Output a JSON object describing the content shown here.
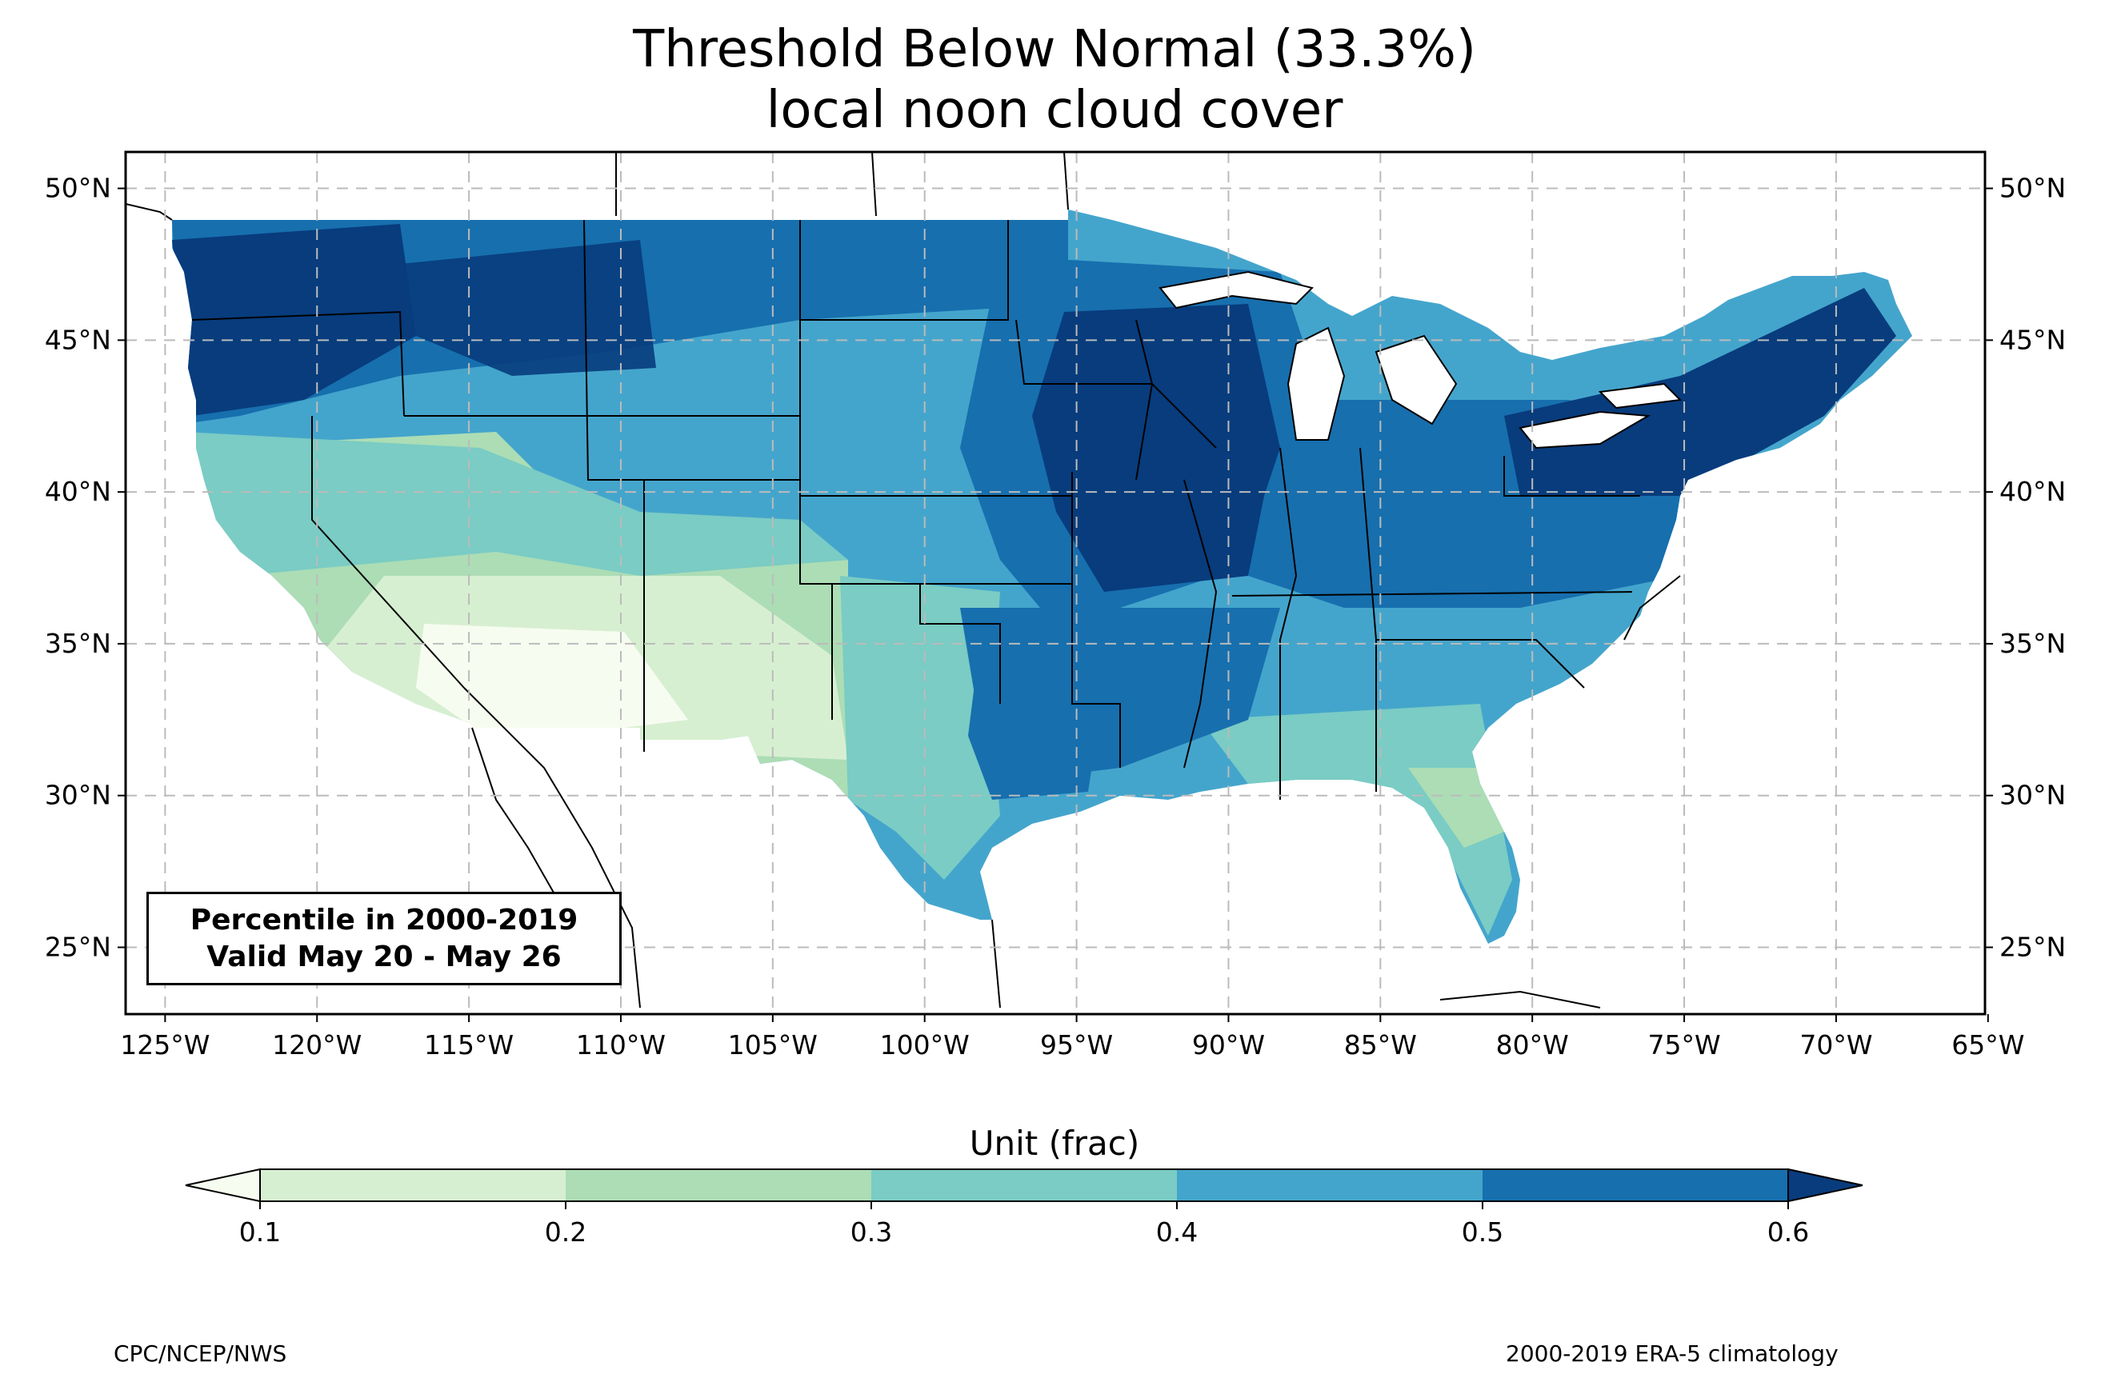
{
  "title": {
    "line1": "Threshold Below Normal (33.3%)",
    "line2": "local noon cloud cover"
  },
  "info_box": {
    "line1": "Percentile in 2000-2019",
    "line2": "Valid May 20 - May 26"
  },
  "axes": {
    "lon_ticks": [
      "125°W",
      "120°W",
      "115°W",
      "110°W",
      "105°W",
      "100°W",
      "95°W",
      "90°W",
      "85°W",
      "80°W",
      "75°W",
      "70°W",
      "65°W"
    ],
    "lat_ticks": [
      "50°N",
      "45°N",
      "40°N",
      "35°N",
      "30°N",
      "25°N"
    ],
    "lon_range": [
      -126.3,
      -65.1
    ],
    "lat_range": [
      22.8,
      51.2
    ],
    "grid": true
  },
  "colorbar": {
    "label": "Unit (frac)",
    "ticks": [
      "0.1",
      "0.2",
      "0.3",
      "0.4",
      "0.5",
      "0.6"
    ],
    "colors": [
      "#f7fcf0",
      "#d7efd1",
      "#acddb5",
      "#7accc4",
      "#44a5cc",
      "#176fae",
      "#083c7d"
    ],
    "extend": "both"
  },
  "footer": {
    "left": "CPC/NCEP/NWS",
    "right": "2000-2019 ERA-5 climatology"
  },
  "map_data": {
    "region": "Contiguous United States",
    "field": "local noon cloud cover, 33.3% threshold (below normal)",
    "regional_levels": [
      {
        "region": "Pacific Northwest",
        "level": 0.6
      },
      {
        "region": "Northern Rockies",
        "level": 0.55
      },
      {
        "region": "Northern Plains",
        "level": 0.5
      },
      {
        "region": "Upper Midwest",
        "level": 0.6
      },
      {
        "region": "Great Lakes",
        "level": 0.45
      },
      {
        "region": "Northeast",
        "level": 0.6
      },
      {
        "region": "Mid-Atlantic / Ohio Valley",
        "level": 0.55
      },
      {
        "region": "Central Plains",
        "level": 0.5
      },
      {
        "region": "Southern Plains (east)",
        "level": 0.5
      },
      {
        "region": "Southeast",
        "level": 0.4
      },
      {
        "region": "Florida",
        "level": 0.35
      },
      {
        "region": "Texas coast",
        "level": 0.35
      },
      {
        "region": "California coast",
        "level": 0.3
      },
      {
        "region": "Great Basin",
        "level": 0.25
      },
      {
        "region": "Desert Southwest",
        "level": 0.1
      }
    ]
  }
}
